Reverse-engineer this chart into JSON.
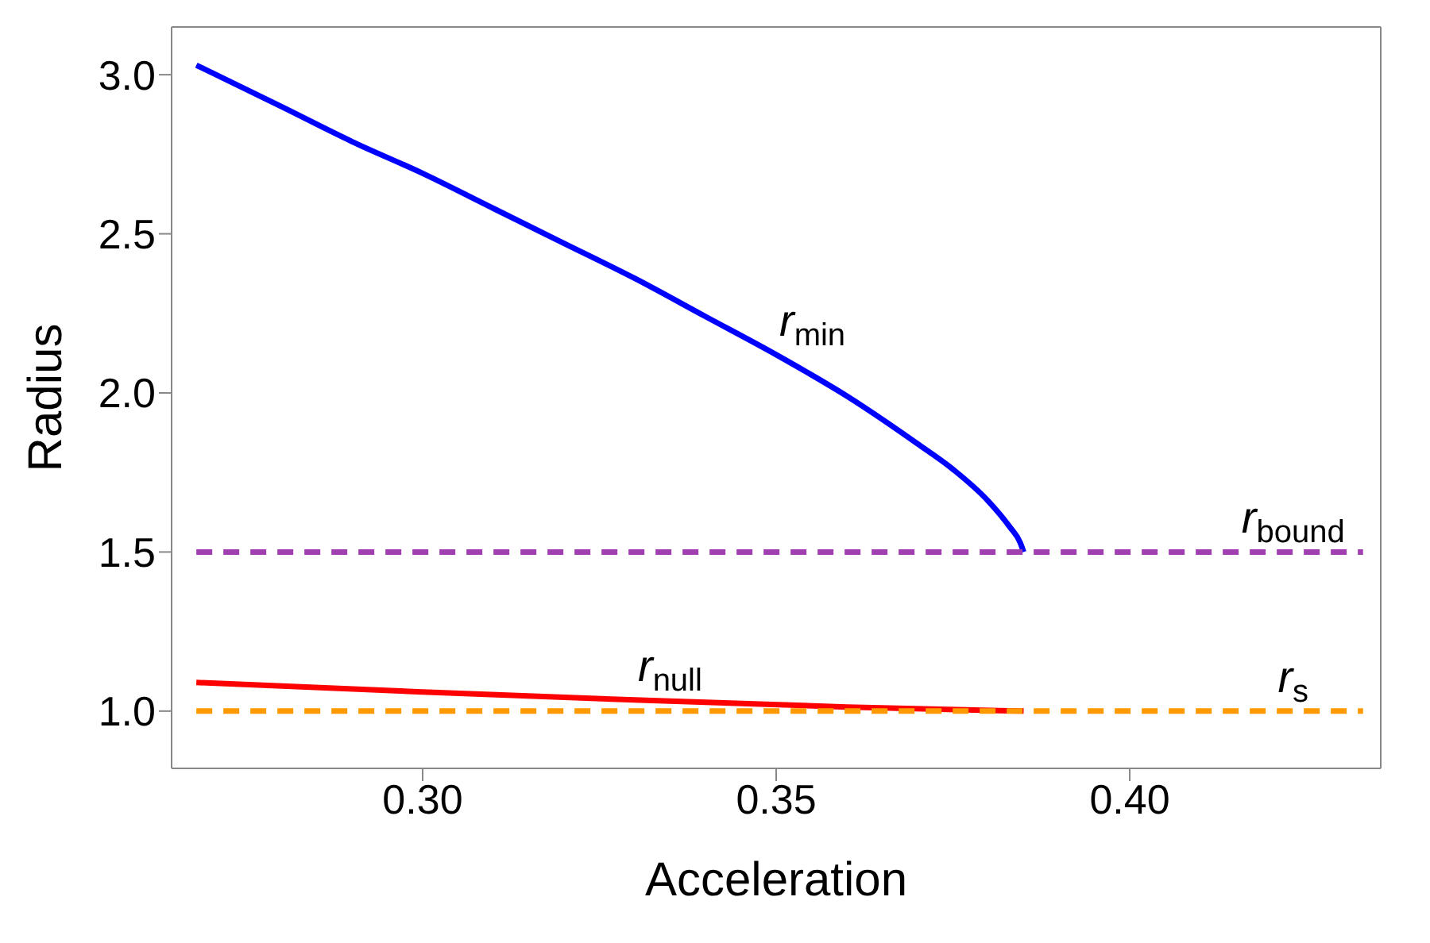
{
  "chart_data": {
    "type": "line",
    "xlabel": "Acceleration",
    "ylabel": "Radius",
    "xlim": [
      0.2645,
      0.4355
    ],
    "xticks": [
      {
        "value": 0.3,
        "label": "0.30"
      },
      0.35,
      {
        "value": 0.4,
        "label": "0.40"
      }
    ],
    "ylim": [
      0.82,
      3.15
    ],
    "yticks": [
      {
        "value": 1,
        "label": "1.0"
      },
      1.5,
      {
        "value": 2,
        "label": "2.0"
      },
      2.5,
      {
        "value": 3,
        "label": "3.0"
      }
    ],
    "legend": false,
    "marker": "none",
    "series": [
      {
        "name": "r$_{min}$",
        "color": "#0000ff",
        "line_style": "solid",
        "x": [
          0.268,
          0.28,
          0.29,
          0.3,
          0.31,
          0.32,
          0.33,
          0.34,
          0.35,
          0.36,
          0.37,
          0.375,
          0.38,
          0.383,
          0.3845,
          0.385
        ],
        "values": [
          3.03,
          2.9,
          2.79,
          2.69,
          2.58,
          2.47,
          2.36,
          2.24,
          2.12,
          1.99,
          1.84,
          1.76,
          1.66,
          1.58,
          1.53,
          1.5
        ]
      },
      {
        "name": "r$_{null}$",
        "color": "#ff0000",
        "line_style": "solid",
        "x": [
          0.268,
          0.3,
          0.33,
          0.36,
          0.385
        ],
        "values": [
          1.09,
          1.06,
          1.035,
          1.013,
          1.0
        ]
      },
      {
        "name": "r$_{bound}$",
        "color": "#a040b0",
        "line_style": "dashed",
        "x": [
          0.268,
          0.433
        ],
        "values": [
          1.5,
          1.5
        ]
      },
      {
        "name": "r$_{s}$",
        "color": "#ff9900",
        "line_style": "dashed",
        "x": [
          0.268,
          0.433
        ],
        "values": [
          1.0,
          1.0
        ]
      }
    ]
  }
}
